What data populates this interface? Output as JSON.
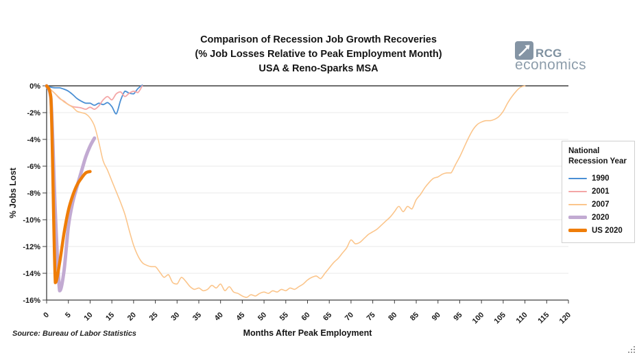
{
  "title": {
    "line1": "Comparison of Recession Job Growth Recoveries",
    "line2": "(% Job Losses Relative to Peak Employment Month)",
    "line3": "USA & Reno-Sparks MSA"
  },
  "logo": {
    "name": "RCG",
    "sub": "economics",
    "color": "#8494a4"
  },
  "source": "Source: Bureau of Labor Statistics",
  "chart_data": {
    "type": "line",
    "title": "Comparison of Recession Job Growth Recoveries (% Job Losses Relative to Peak Employment Month) USA & Reno-Sparks MSA",
    "xlabel": "Months After Peak Employment",
    "ylabel": "% Jobs Lost",
    "xlim": [
      0,
      120
    ],
    "ylim": [
      -16,
      0
    ],
    "grid": true,
    "x_ticks": [
      0,
      5,
      10,
      15,
      20,
      25,
      30,
      35,
      40,
      45,
      50,
      55,
      60,
      65,
      70,
      75,
      80,
      85,
      90,
      95,
      100,
      105,
      110,
      115,
      120
    ],
    "y_tick_labels": [
      "0%",
      "-2%",
      "-4%",
      "-6%",
      "-8%",
      "-10%",
      "-12%",
      "-14%",
      "-16%"
    ],
    "legend_title": "National Recession Year",
    "legend_position": "right",
    "x_unit": "months after peak employment (x = array index)",
    "y_unit": "percent jobs lost relative to peak",
    "series": [
      {
        "name": "1990",
        "color": "#4a8fd4",
        "width": 1.8,
        "values": [
          0,
          -0.1,
          -0.15,
          -0.15,
          -0.25,
          -0.4,
          -0.65,
          -0.95,
          -1.15,
          -1.3,
          -1.3,
          -1.45,
          -1.3,
          -1.4,
          -1.25,
          -1.55,
          -2.1,
          -1.1,
          -0.4,
          -0.55,
          -0.6,
          -0.2,
          0.05
        ]
      },
      {
        "name": "2001",
        "color": "#f4a6a6",
        "width": 1.8,
        "values": [
          0,
          -0.3,
          -0.6,
          -0.95,
          -1.15,
          -1.4,
          -1.55,
          -1.6,
          -1.65,
          -1.75,
          -1.6,
          -1.75,
          -1.5,
          -1.05,
          -0.8,
          -1.05,
          -0.6,
          -0.45,
          -0.8,
          -0.55,
          -0.4,
          -0.5,
          0
        ]
      },
      {
        "name": "2007",
        "color": "#fbc58b",
        "width": 1.6,
        "values": [
          0,
          -0.3,
          -0.6,
          -0.9,
          -1.2,
          -1.4,
          -1.6,
          -1.9,
          -2.0,
          -2.1,
          -2.4,
          -3.0,
          -4.2,
          -5.6,
          -6.3,
          -7.1,
          -7.9,
          -8.7,
          -9.6,
          -10.8,
          -11.9,
          -12.7,
          -13.2,
          -13.4,
          -13.5,
          -13.5,
          -13.9,
          -14.3,
          -14.1,
          -14.7,
          -14.8,
          -14.3,
          -14.6,
          -15.0,
          -15.2,
          -15.1,
          -15.3,
          -15.2,
          -14.9,
          -15.1,
          -14.8,
          -15.3,
          -15.0,
          -15.4,
          -15.5,
          -15.7,
          -15.8,
          -15.6,
          -15.7,
          -15.5,
          -15.4,
          -15.5,
          -15.3,
          -15.4,
          -15.2,
          -15.3,
          -15.1,
          -15.2,
          -15.0,
          -14.8,
          -14.5,
          -14.3,
          -14.2,
          -14.4,
          -14.0,
          -13.6,
          -13.2,
          -12.9,
          -12.5,
          -12.1,
          -11.5,
          -11.8,
          -11.7,
          -11.4,
          -11.1,
          -10.9,
          -10.7,
          -10.4,
          -10.1,
          -9.8,
          -9.4,
          -9.0,
          -9.4,
          -9.0,
          -9.2,
          -8.5,
          -8.1,
          -7.6,
          -7.2,
          -6.9,
          -6.8,
          -6.6,
          -6.5,
          -6.5,
          -5.9,
          -5.3,
          -4.6,
          -3.9,
          -3.3,
          -2.9,
          -2.7,
          -2.6,
          -2.6,
          -2.5,
          -2.3,
          -1.9,
          -1.3,
          -0.8,
          -0.4,
          -0.1,
          0
        ]
      },
      {
        "name": "2020",
        "color": "#c2aad2",
        "width": 5,
        "values": [
          0,
          -1.0,
          -9.5,
          -15.3,
          -13.8,
          -10.5,
          -8.7,
          -7.5,
          -6.4,
          -5.3,
          -4.5,
          -3.9
        ]
      },
      {
        "name": "US 2020",
        "color": "#ef7d08",
        "width": 4.5,
        "values": [
          0,
          -0.9,
          -14.7,
          -13.2,
          -11.0,
          -9.3,
          -8.2,
          -7.4,
          -6.9,
          -6.5,
          -6.4
        ]
      }
    ]
  },
  "colors": {
    "grid": "#e9e9e9",
    "axis": "#3d3d3d",
    "background": "#ffffff",
    "legend_border": "#cfcfcf"
  }
}
